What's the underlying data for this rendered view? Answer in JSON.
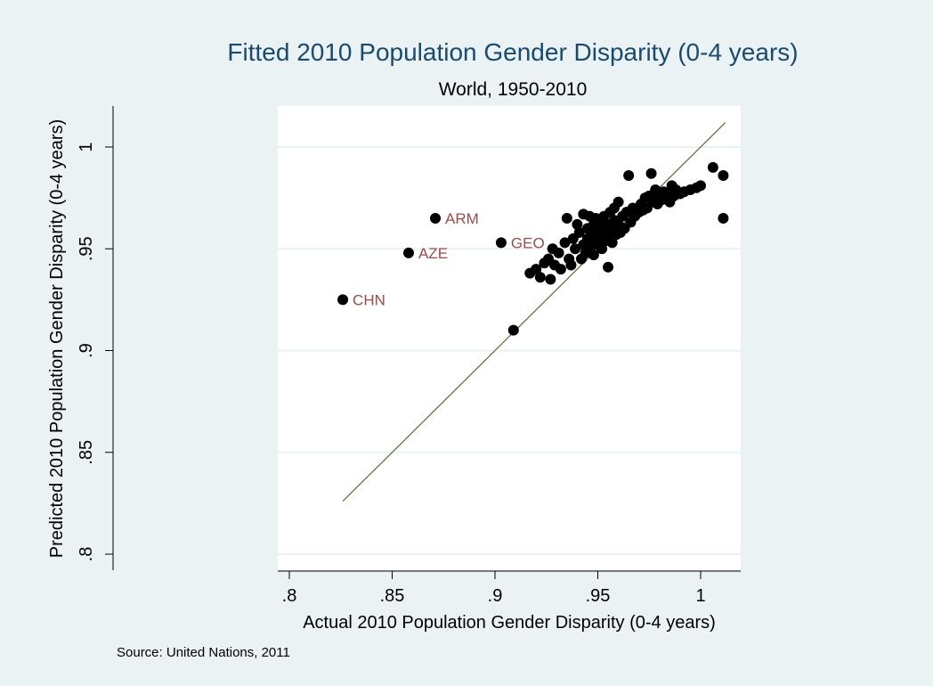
{
  "chart_data": {
    "type": "scatter",
    "title": "Fitted 2010 Population Gender Disparity (0-4 years)",
    "subtitle": "World, 1950-2010",
    "xlabel": "Actual 2010 Population Gender Disparity (0-4 years)",
    "ylabel": "Predicted 2010 Population Gender Disparity (0-4 years)",
    "source": "Source: United Nations, 2011",
    "xlim": [
      0.8,
      1.015
    ],
    "ylim": [
      0.8,
      1.02
    ],
    "x_ticks": [
      0.8,
      0.85,
      0.9,
      0.95,
      1.0
    ],
    "x_tick_labels": [
      ".8",
      ".85",
      ".9",
      ".95",
      "1"
    ],
    "y_ticks": [
      0.8,
      0.85,
      0.9,
      0.95,
      1.0
    ],
    "y_tick_labels": [
      ".8",
      ".85",
      ".9",
      ".95",
      "1"
    ],
    "grid": "horizontal",
    "fit_line": {
      "from": [
        0.826,
        0.826
      ],
      "to": [
        1.012,
        1.012
      ]
    },
    "labeled_points": [
      {
        "label": "CHN",
        "x": 0.826,
        "y": 0.925
      },
      {
        "label": "AZE",
        "x": 0.858,
        "y": 0.948
      },
      {
        "label": "ARM",
        "x": 0.871,
        "y": 0.965
      },
      {
        "label": "GEO",
        "x": 0.903,
        "y": 0.953
      }
    ],
    "points": [
      [
        0.909,
        0.91
      ],
      [
        0.917,
        0.938
      ],
      [
        0.92,
        0.94
      ],
      [
        0.922,
        0.936
      ],
      [
        0.924,
        0.943
      ],
      [
        0.926,
        0.945
      ],
      [
        0.927,
        0.935
      ],
      [
        0.928,
        0.95
      ],
      [
        0.929,
        0.942
      ],
      [
        0.931,
        0.948
      ],
      [
        0.932,
        0.94
      ],
      [
        0.934,
        0.953
      ],
      [
        0.935,
        0.965
      ],
      [
        0.936,
        0.945
      ],
      [
        0.937,
        0.942
      ],
      [
        0.938,
        0.955
      ],
      [
        0.939,
        0.95
      ],
      [
        0.94,
        0.962
      ],
      [
        0.941,
        0.958
      ],
      [
        0.942,
        0.945
      ],
      [
        0.943,
        0.952
      ],
      [
        0.943,
        0.967
      ],
      [
        0.944,
        0.948
      ],
      [
        0.945,
        0.955
      ],
      [
        0.945,
        0.96
      ],
      [
        0.946,
        0.95
      ],
      [
        0.946,
        0.966
      ],
      [
        0.947,
        0.953
      ],
      [
        0.947,
        0.958
      ],
      [
        0.948,
        0.962
      ],
      [
        0.948,
        0.947
      ],
      [
        0.949,
        0.955
      ],
      [
        0.949,
        0.965
      ],
      [
        0.95,
        0.952
      ],
      [
        0.95,
        0.958
      ],
      [
        0.951,
        0.961
      ],
      [
        0.951,
        0.956
      ],
      [
        0.952,
        0.963
      ],
      [
        0.952,
        0.95
      ],
      [
        0.953,
        0.958
      ],
      [
        0.953,
        0.966
      ],
      [
        0.954,
        0.954
      ],
      [
        0.954,
        0.96
      ],
      [
        0.955,
        0.941
      ],
      [
        0.955,
        0.962
      ],
      [
        0.956,
        0.956
      ],
      [
        0.956,
        0.968
      ],
      [
        0.957,
        0.959
      ],
      [
        0.957,
        0.953
      ],
      [
        0.958,
        0.964
      ],
      [
        0.958,
        0.97
      ],
      [
        0.959,
        0.957
      ],
      [
        0.96,
        0.962
      ],
      [
        0.96,
        0.973
      ],
      [
        0.961,
        0.958
      ],
      [
        0.962,
        0.966
      ],
      [
        0.963,
        0.96
      ],
      [
        0.964,
        0.968
      ],
      [
        0.965,
        0.986
      ],
      [
        0.966,
        0.963
      ],
      [
        0.967,
        0.97
      ],
      [
        0.968,
        0.966
      ],
      [
        0.97,
        0.968
      ],
      [
        0.971,
        0.972
      ],
      [
        0.972,
        0.969
      ],
      [
        0.973,
        0.975
      ],
      [
        0.974,
        0.97
      ],
      [
        0.975,
        0.976
      ],
      [
        0.976,
        0.987
      ],
      [
        0.977,
        0.973
      ],
      [
        0.978,
        0.979
      ],
      [
        0.979,
        0.972
      ],
      [
        0.98,
        0.976
      ],
      [
        0.981,
        0.974
      ],
      [
        0.982,
        0.978
      ],
      [
        0.983,
        0.975
      ],
      [
        0.984,
        0.977
      ],
      [
        0.985,
        0.973
      ],
      [
        0.986,
        0.981
      ],
      [
        0.987,
        0.976
      ],
      [
        0.988,
        0.979
      ],
      [
        0.99,
        0.977
      ],
      [
        0.992,
        0.978
      ],
      [
        0.995,
        0.979
      ],
      [
        0.998,
        0.98
      ],
      [
        1.0,
        0.981
      ],
      [
        1.006,
        0.99
      ],
      [
        1.011,
        0.986
      ],
      [
        1.011,
        0.965
      ]
    ]
  }
}
